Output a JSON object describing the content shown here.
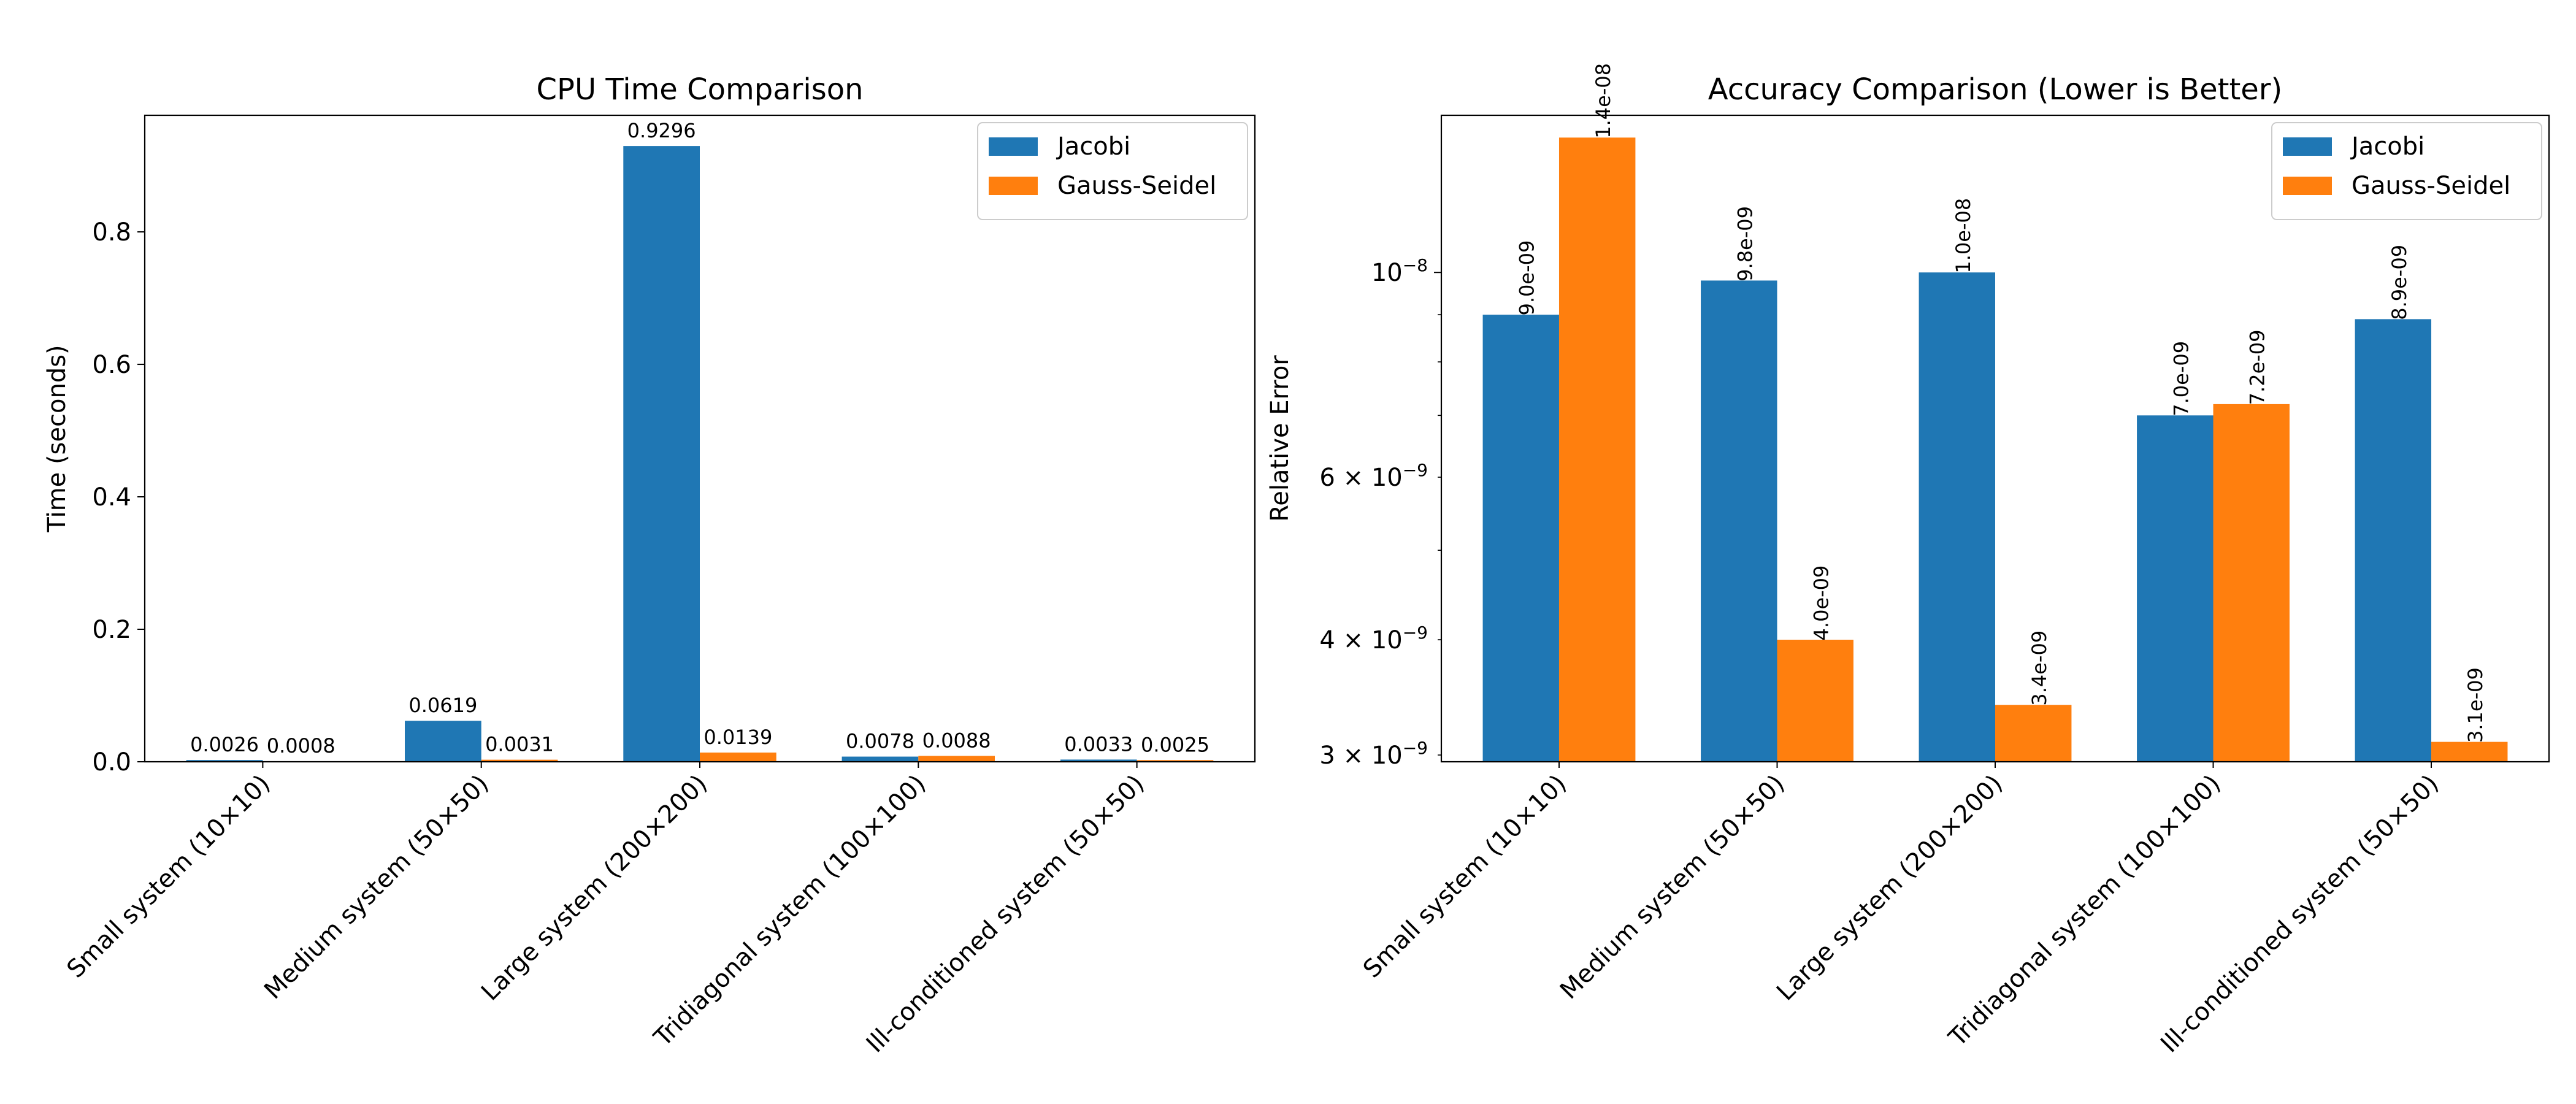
{
  "chart_data": [
    {
      "type": "bar",
      "title": "CPU Time Comparison",
      "ylabel": "Time (seconds)",
      "xlabel": "",
      "scale": "linear",
      "ylim": [
        0,
        0.976
      ],
      "yticks": [
        0.0,
        0.2,
        0.4,
        0.6,
        0.8
      ],
      "ytick_labels": [
        "0.0",
        "0.2",
        "0.4",
        "0.6",
        "0.8"
      ],
      "legend_position": "top-right",
      "categories": [
        "Small system (10×10)",
        "Medium system (50×50)",
        "Large system (200×200)",
        "Tridiagonal system (100×100)",
        "Ill-conditioned system (50×50)"
      ],
      "series": [
        {
          "name": "Jacobi",
          "color": "#1f77b4",
          "values": [
            0.0026,
            0.0619,
            0.9296,
            0.0078,
            0.0033
          ],
          "labels": [
            "0.0026",
            "0.0619",
            "0.9296",
            "0.0078",
            "0.0033"
          ]
        },
        {
          "name": "Gauss-Seidel",
          "color": "#ff7f0e",
          "values": [
            0.0008,
            0.0031,
            0.0139,
            0.0088,
            0.0025
          ],
          "labels": [
            "0.0008",
            "0.0031",
            "0.0139",
            "0.0088",
            "0.0025"
          ]
        }
      ]
    },
    {
      "type": "bar",
      "title": "Accuracy Comparison (Lower is Better)",
      "ylabel": "Relative Error",
      "xlabel": "",
      "scale": "log",
      "ylim": [
        2.95e-09,
        1.48e-08
      ],
      "yticks_major": [
        1e-08
      ],
      "ytick_major_labels": [
        {
          "base": "10",
          "exp": "−8"
        }
      ],
      "yticks_minor": [
        3e-09,
        4e-09,
        5e-09,
        6e-09,
        7e-09,
        8e-09,
        9e-09
      ],
      "ytick_minor_labels": [
        {
          "value": 3e-09,
          "mant": "3",
          "exp": "−9"
        },
        {
          "value": 4e-09,
          "mant": "4",
          "exp": "−9"
        },
        {
          "value": 6e-09,
          "mant": "6",
          "exp": "−9"
        }
      ],
      "legend_position": "top-right",
      "categories": [
        "Small system (10×10)",
        "Medium system (50×50)",
        "Large system (200×200)",
        "Tridiagonal system (100×100)",
        "Ill-conditioned system (50×50)"
      ],
      "series": [
        {
          "name": "Jacobi",
          "color": "#1f77b4",
          "values": [
            9e-09,
            9.8e-09,
            1e-08,
            7e-09,
            8.9e-09
          ],
          "labels": [
            "9.0e-09",
            "9.8e-09",
            "1.0e-08",
            "7.0e-09",
            "8.9e-09"
          ]
        },
        {
          "name": "Gauss-Seidel",
          "color": "#ff7f0e",
          "values": [
            1.4e-08,
            4e-09,
            3.4e-09,
            7.2e-09,
            3.1e-09
          ],
          "labels": [
            "1.4e-08",
            "4.0e-09",
            "3.4e-09",
            "7.2e-09",
            "3.1e-09"
          ]
        }
      ]
    }
  ]
}
